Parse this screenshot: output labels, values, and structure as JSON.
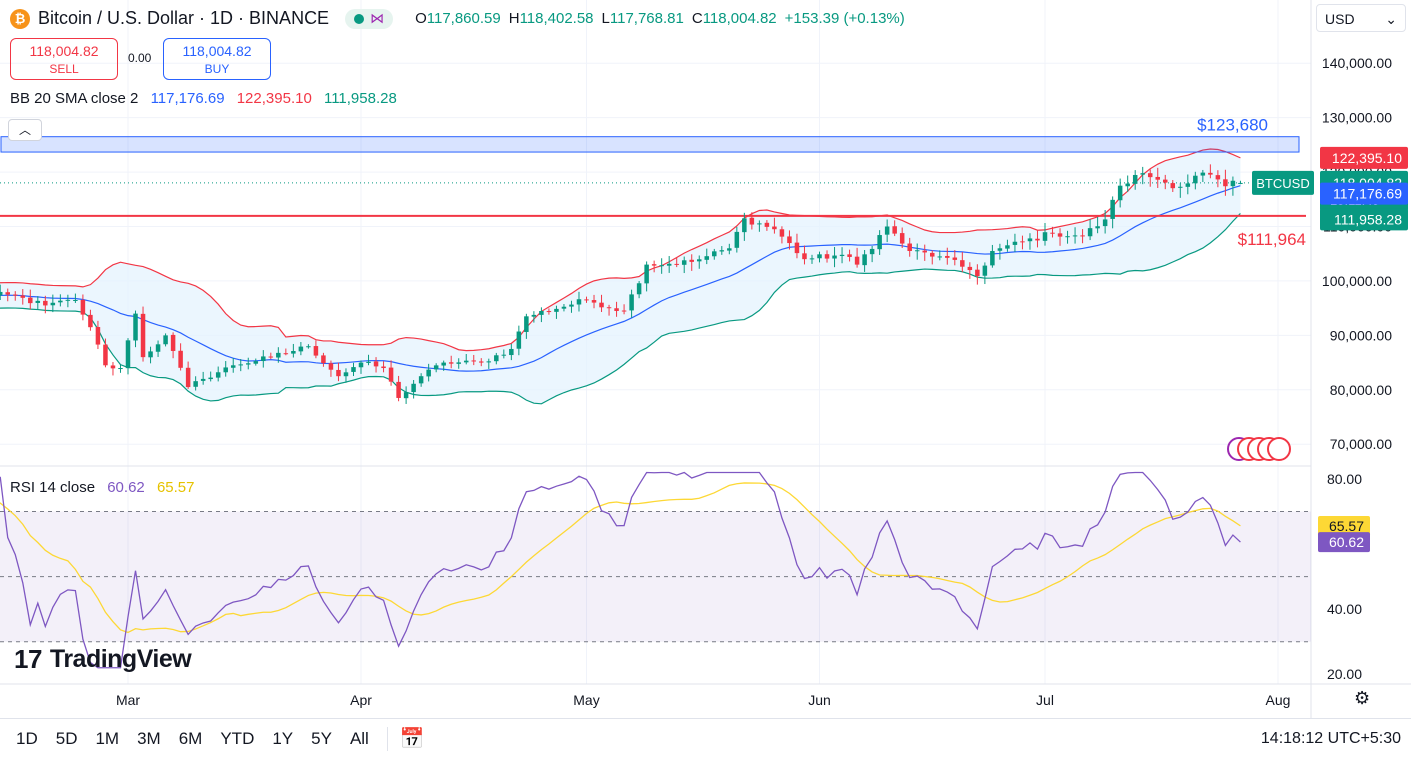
{
  "header": {
    "logo_glyph": "₿",
    "title": "Bitcoin / U.S. Dollar · 1D · BINANCE",
    "share_icon": "share-network-icon",
    "ohlc": {
      "o_label": "O",
      "o": "117,860.59",
      "h_label": "H",
      "h": "118,402.58",
      "l_label": "L",
      "l": "117,768.81",
      "c_label": "C",
      "c": "118,004.82",
      "change": "+153.39 (+0.13%)"
    }
  },
  "trade": {
    "sell_price": "118,004.82",
    "sell_label": "SELL",
    "spread": "0.00",
    "buy_price": "118,004.82",
    "buy_label": "BUY"
  },
  "bb_legend": {
    "name": "BB 20 SMA close 2",
    "basis": "117,176.69",
    "upper": "122,395.10",
    "lower": "111,958.28"
  },
  "rsi_legend": {
    "name": "RSI 14 close",
    "rsi": "60.62",
    "ma": "65.57"
  },
  "currency": {
    "value": "USD",
    "icon": "chevron-down-icon"
  },
  "brand": {
    "mark": "17",
    "name": "TradingView"
  },
  "toolbar": {
    "ranges": [
      "1D",
      "5D",
      "1M",
      "3M",
      "6M",
      "YTD",
      "1Y",
      "5Y",
      "All"
    ],
    "calendar_icon": "calendar-range-icon",
    "clock": "14:18:12 UTC+5:30",
    "settings_icon": "gear-icon"
  },
  "colors": {
    "up": "#089981",
    "down": "#f23645",
    "basis": "#2962ff",
    "upper": "#f23645",
    "lower": "#089981",
    "band_fill": "#e3f2fd",
    "rsi": "#7e57c2",
    "rsi_ma": "#fdd835",
    "zone": "#2962ff",
    "hline": "#f23645"
  },
  "chart_data": [
    {
      "type": "candlestick",
      "title": "Bitcoin / U.S. Dollar · 1D · BINANCE",
      "symbol": "BTCUSD",
      "x_ticks": [
        "Mar",
        "Apr",
        "May",
        "Jun",
        "Jul",
        "Aug"
      ],
      "y_ticks": [
        "140,000.00",
        "130,000.00",
        "120,000.00",
        "110,000.00",
        "100,000.00",
        "90,000.00",
        "80,000.00",
        "70,000.00"
      ],
      "y_tick_values": [
        140000,
        130000,
        120000,
        110000,
        100000,
        90000,
        80000,
        70000
      ],
      "ylim": [
        66000,
        145000
      ],
      "start_date": "2025-02-08",
      "end_date": "2025-07-27",
      "close_waypoints": [
        [
          "2025-02-08",
          97000
        ],
        [
          "2025-02-13",
          97500
        ],
        [
          "2025-02-18",
          95500
        ],
        [
          "2025-02-22",
          96500
        ],
        [
          "2025-02-24",
          91500
        ],
        [
          "2025-02-26",
          84500
        ],
        [
          "2025-02-28",
          84000
        ],
        [
          "2025-03-02",
          94000
        ],
        [
          "2025-03-03",
          86000
        ],
        [
          "2025-03-06",
          90000
        ],
        [
          "2025-03-09",
          80500
        ],
        [
          "2025-03-11",
          82000
        ],
        [
          "2025-03-15",
          84500
        ],
        [
          "2025-03-20",
          86000
        ],
        [
          "2025-03-25",
          88000
        ],
        [
          "2025-03-29",
          82500
        ],
        [
          "2025-04-01",
          85000
        ],
        [
          "2025-04-04",
          84000
        ],
        [
          "2025-04-06",
          78500
        ],
        [
          "2025-04-09",
          82500
        ],
        [
          "2025-04-12",
          85000
        ],
        [
          "2025-04-17",
          85000
        ],
        [
          "2025-04-21",
          87500
        ],
        [
          "2025-04-23",
          93500
        ],
        [
          "2025-05-01",
          96500
        ],
        [
          "2025-05-06",
          94500
        ],
        [
          "2025-05-09",
          103000
        ],
        [
          "2025-05-15",
          103500
        ],
        [
          "2025-05-20",
          106000
        ],
        [
          "2025-05-22",
          111500
        ],
        [
          "2025-05-26",
          109500
        ],
        [
          "2025-05-30",
          104000
        ],
        [
          "2025-06-04",
          104800
        ],
        [
          "2025-06-06",
          103000
        ],
        [
          "2025-06-10",
          110000
        ],
        [
          "2025-06-13",
          105500
        ],
        [
          "2025-06-17",
          104500
        ],
        [
          "2025-06-21",
          102000
        ],
        [
          "2025-06-22",
          100900
        ],
        [
          "2025-06-24",
          105500
        ],
        [
          "2025-07-02",
          108800
        ],
        [
          "2025-07-06",
          108300
        ],
        [
          "2025-07-09",
          111300
        ],
        [
          "2025-07-11",
          117500
        ],
        [
          "2025-07-14",
          119800
        ],
        [
          "2025-07-16",
          118600
        ],
        [
          "2025-07-19",
          117300
        ],
        [
          "2025-07-22",
          119900
        ],
        [
          "2025-07-25",
          117400
        ],
        [
          "2025-07-27",
          118004.82
        ]
      ],
      "bollinger": {
        "period": 20,
        "mult": 2,
        "basis_last": 117176.69,
        "upper_last": 122395.1,
        "lower_last": 111958.28
      },
      "zone": {
        "low": 123680,
        "high": 126500,
        "label": "$123,680"
      },
      "horizontal_line": {
        "value": 111964,
        "label": "$111,964"
      },
      "price_labels": {
        "upper": "122,395.10",
        "symbol": "BTCUSD",
        "close": "118,004.82",
        "countdown": "15:11:49",
        "basis": "117,176.69",
        "lower": "111,958.28"
      }
    },
    {
      "type": "line",
      "title": "RSI 14 close",
      "y_ticks": [
        "80.00",
        "40.00",
        "20.00"
      ],
      "y_tick_values": [
        80,
        40,
        20
      ],
      "ylim": [
        17,
        84
      ],
      "bands": {
        "upper": 70,
        "middle": 50,
        "lower": 30
      },
      "series": [
        {
          "name": "RSI",
          "last": 60.62
        },
        {
          "name": "RSI-based MA",
          "last": 65.57
        }
      ],
      "labels": {
        "ma": "65.57",
        "rsi": "60.62"
      }
    }
  ]
}
